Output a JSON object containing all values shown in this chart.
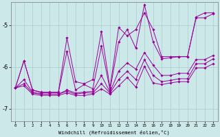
{
  "xlabel": "Windchill (Refroidissement éolien,°C)",
  "background_color": "#cce8e8",
  "grid_color": "#aacccc",
  "line_color": "#990099",
  "xlim": [
    -0.5,
    23.5
  ],
  "ylim": [
    -7.3,
    -4.45
  ],
  "yticks": [
    -7,
    -6,
    -5
  ],
  "xticks": [
    0,
    1,
    2,
    3,
    4,
    5,
    6,
    7,
    8,
    9,
    10,
    11,
    12,
    13,
    14,
    15,
    16,
    17,
    18,
    19,
    20,
    21,
    22,
    23
  ],
  "series": [
    [
      -6.5,
      -5.85,
      -6.55,
      -6.6,
      -6.6,
      -6.6,
      -5.3,
      -6.35,
      -6.4,
      -6.3,
      -5.15,
      -6.5,
      -5.05,
      -5.25,
      -5.1,
      -4.7,
      -5.1,
      -5.75,
      -5.75,
      -5.75,
      -5.75,
      -4.8,
      -4.7,
      -4.7
    ],
    [
      -6.5,
      -5.85,
      -6.55,
      -6.62,
      -6.62,
      -6.62,
      -5.62,
      -6.55,
      -6.42,
      -6.52,
      -5.5,
      -6.55,
      -5.4,
      -5.1,
      -5.55,
      -4.5,
      -5.4,
      -5.8,
      -5.78,
      -5.75,
      -5.75,
      -4.82,
      -4.82,
      -4.72
    ],
    [
      -6.5,
      -6.3,
      -6.6,
      -6.65,
      -6.65,
      -6.65,
      -6.55,
      -6.62,
      -6.6,
      -6.58,
      -6.2,
      -6.6,
      -6.1,
      -5.9,
      -6.05,
      -5.65,
      -5.95,
      -6.2,
      -6.2,
      -6.15,
      -6.15,
      -5.82,
      -5.82,
      -5.72
    ],
    [
      -6.5,
      -6.4,
      -6.62,
      -6.65,
      -6.65,
      -6.65,
      -6.58,
      -6.65,
      -6.62,
      -6.62,
      -6.4,
      -6.62,
      -6.3,
      -6.1,
      -6.3,
      -5.82,
      -6.2,
      -6.35,
      -6.32,
      -6.28,
      -6.28,
      -5.92,
      -5.92,
      -5.8
    ],
    [
      -6.5,
      -6.45,
      -6.65,
      -6.68,
      -6.68,
      -6.68,
      -6.62,
      -6.68,
      -6.68,
      -6.65,
      -6.52,
      -6.65,
      -6.45,
      -6.25,
      -6.48,
      -5.98,
      -6.38,
      -6.42,
      -6.38,
      -6.35,
      -6.35,
      -6.02,
      -6.02,
      -5.92
    ]
  ]
}
